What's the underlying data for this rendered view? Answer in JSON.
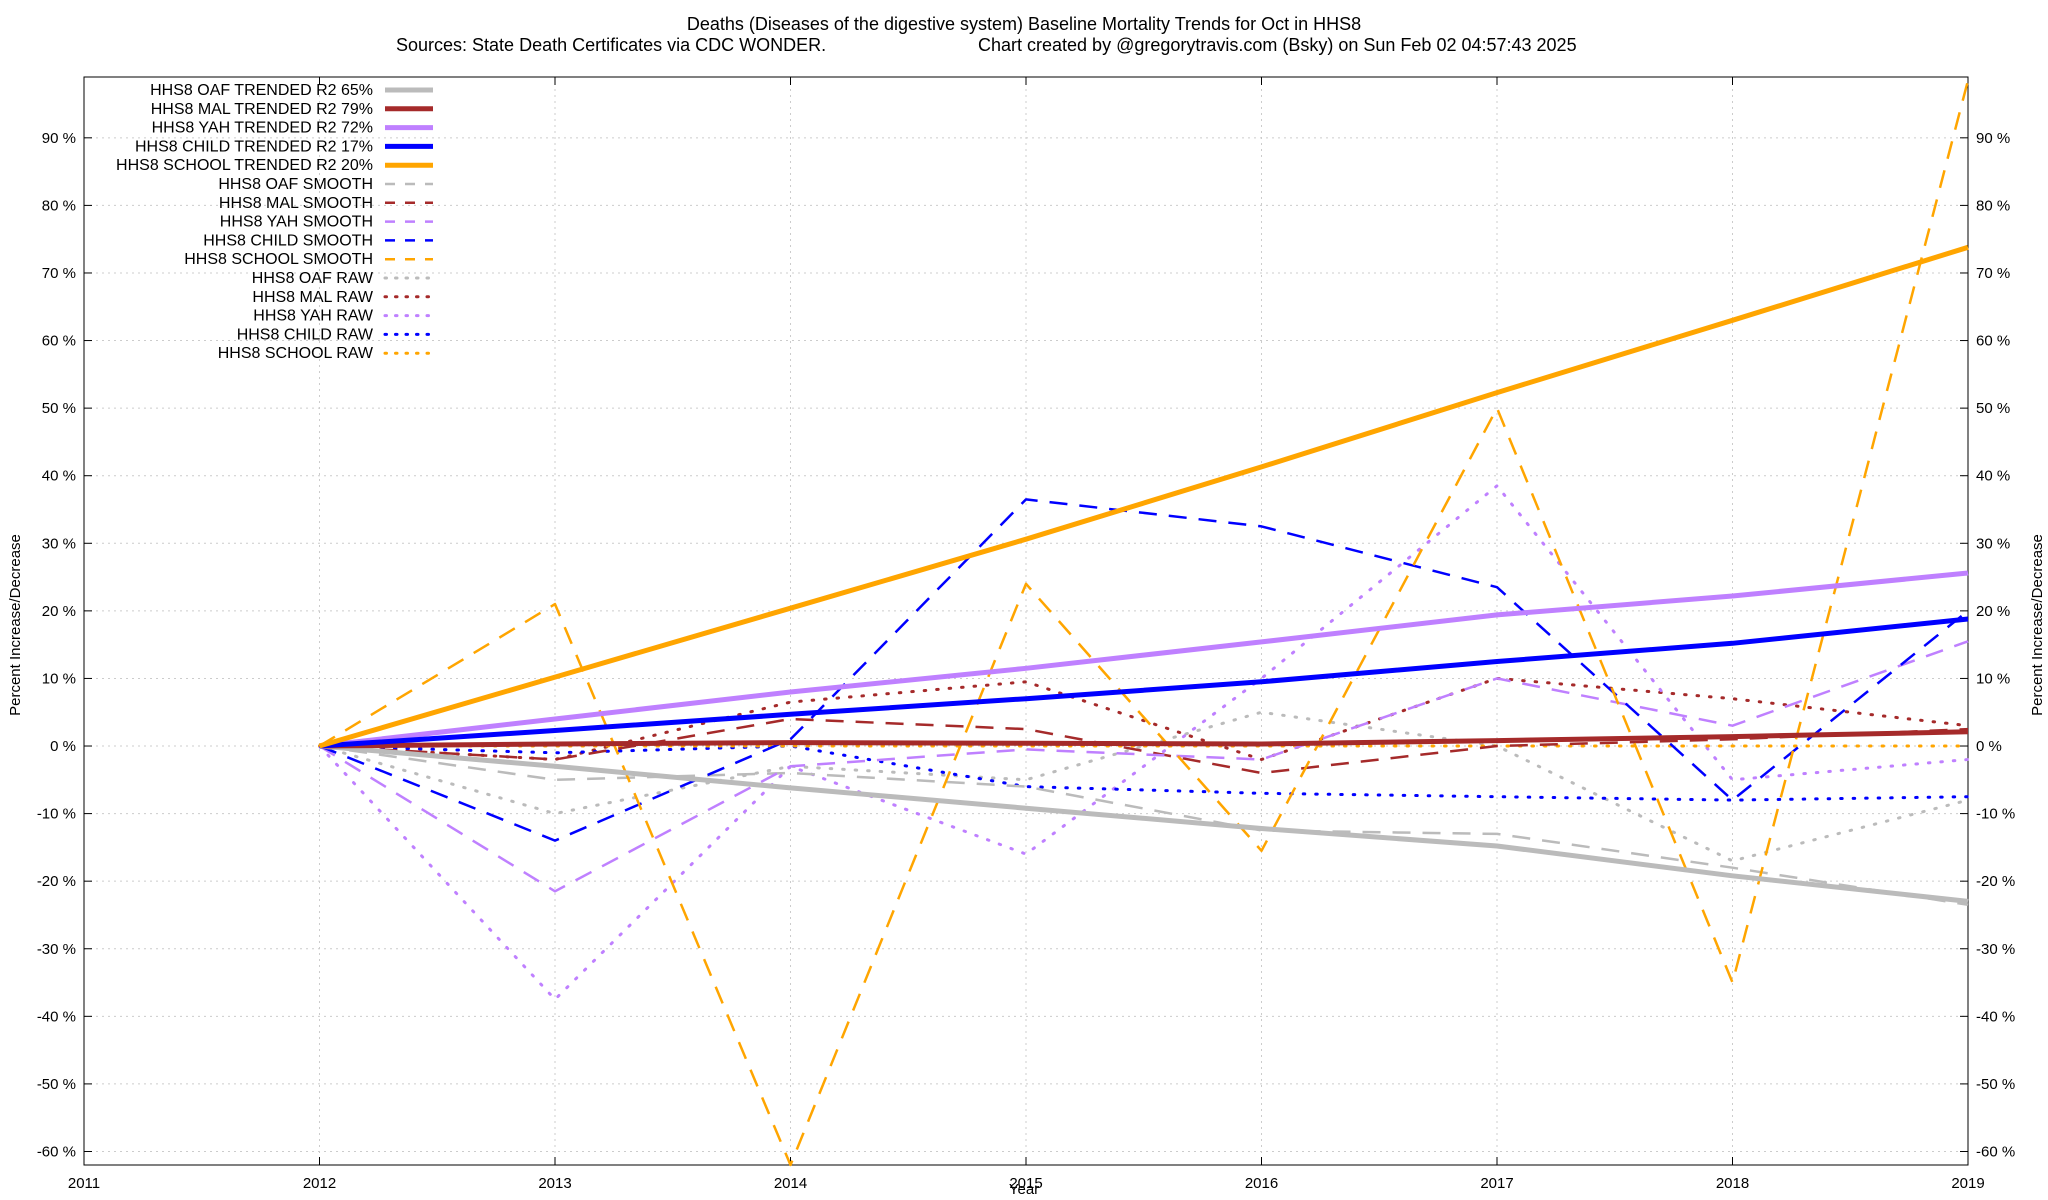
{
  "chart_data": {
    "type": "line",
    "title": "Deaths (Diseases of the digestive system)  Baseline Mortality Trends for Oct in HHS8",
    "subtitle_left": "Sources: State Death Certificates via CDC WONDER.",
    "subtitle_right": "Chart created by @gregorytravis.com (Bsky) on Sun Feb 02 04:57:43 2025",
    "xlabel": "Year",
    "ylabel": "Percent Increase/Decrease",
    "ylabel_right": "Percent Increase/Decrease",
    "xlim": [
      2011,
      2019
    ],
    "ylim": [
      -62,
      99
    ],
    "x_ticks": [
      2011,
      2012,
      2013,
      2014,
      2015,
      2016,
      2017,
      2018,
      2019
    ],
    "x_tick_labels": [
      "2011",
      "2012",
      "2013",
      "2014",
      "2015",
      "2016",
      "2017",
      "2018",
      "2019"
    ],
    "y_ticks": [
      90,
      80,
      70,
      60,
      50,
      40,
      30,
      20,
      10,
      0,
      -10,
      -20,
      -30,
      -40,
      -50,
      -60
    ],
    "y_tick_labels": [
      "90 %",
      "80 %",
      "70 %",
      "60 %",
      "50 %",
      "40 %",
      "30 %",
      "20 %",
      "10 %",
      "0 %",
      "-10 %",
      "-20 %",
      "-30 %",
      "-40 %",
      "-50 %",
      "-60 %"
    ],
    "grid": true,
    "legend_position": "top-left",
    "series": [
      {
        "name": "HHS8 OAF TRENDED R2  65%",
        "color": "#bbbbbb",
        "style": "solid",
        "x": [
          2012,
          2013,
          2014,
          2015,
          2016,
          2017,
          2018,
          2019
        ],
        "y": [
          0,
          -3,
          -6.2,
          -9.2,
          -12.2,
          -14.8,
          -19.2,
          -23
        ]
      },
      {
        "name": "HHS8 MAL TRENDED R2  79%",
        "color": "#a52a2a",
        "style": "solid",
        "x": [
          2012,
          2013,
          2014,
          2015,
          2016,
          2017,
          2018,
          2019
        ],
        "y": [
          0,
          0.3,
          0.5,
          0.4,
          0.3,
          0.8,
          1.4,
          2.1
        ]
      },
      {
        "name": "HHS8 YAH TRENDED R2  72%",
        "color": "#bf80ff",
        "style": "solid",
        "x": [
          2012,
          2013,
          2014,
          2015,
          2016,
          2017,
          2018,
          2019
        ],
        "y": [
          0,
          4,
          8,
          11.5,
          15.4,
          19.4,
          22.2,
          25.6
        ]
      },
      {
        "name": "HHS8 CHILD TRENDED R2  17%",
        "color": "#0000ff",
        "style": "solid",
        "x": [
          2012,
          2013,
          2014,
          2015,
          2016,
          2017,
          2018,
          2019
        ],
        "y": [
          0,
          2.3,
          4.7,
          7,
          9.5,
          12.5,
          15.2,
          18.8
        ]
      },
      {
        "name": "HHS8 SCHOOL TRENDED R2  20%",
        "color": "#ffa500",
        "style": "solid",
        "x": [
          2012,
          2013,
          2014,
          2015,
          2016,
          2017,
          2018,
          2019
        ],
        "y": [
          0,
          10.2,
          20.4,
          30.6,
          41.3,
          52.3,
          63,
          73.8
        ]
      },
      {
        "name": "HHS8 OAF SMOOTH",
        "color": "#bbbbbb",
        "style": "dash",
        "x": [
          2012,
          2013,
          2014,
          2015,
          2016,
          2017,
          2018,
          2019
        ],
        "y": [
          0,
          -5,
          -4,
          -6,
          -12.5,
          -13,
          -18,
          -23.5
        ]
      },
      {
        "name": "HHS8 MAL SMOOTH",
        "color": "#a52a2a",
        "style": "dash",
        "x": [
          2012,
          2013,
          2014,
          2015,
          2016,
          2017,
          2018,
          2019
        ],
        "y": [
          0,
          -2,
          4,
          2.5,
          -4,
          0,
          1,
          2.5
        ]
      },
      {
        "name": "HHS8 YAH SMOOTH",
        "color": "#bf80ff",
        "style": "dash",
        "x": [
          2012,
          2013,
          2014,
          2015,
          2016,
          2017,
          2018,
          2019
        ],
        "y": [
          0,
          -21.5,
          -3,
          -0.5,
          -2,
          10,
          3,
          15.5
        ]
      },
      {
        "name": "HHS8 CHILD SMOOTH",
        "color": "#0000ff",
        "style": "dash",
        "x": [
          2012,
          2013,
          2014,
          2015,
          2016,
          2017,
          2018,
          2019
        ],
        "y": [
          0,
          -14,
          1,
          36.5,
          32.5,
          23.5,
          -8,
          20
        ]
      },
      {
        "name": "HHS8 SCHOOL SMOOTH",
        "color": "#ffa500",
        "style": "dash",
        "x": [
          2012,
          2013,
          2014,
          2015,
          2016,
          2017,
          2018,
          2019
        ],
        "y": [
          0,
          21,
          -62,
          24,
          -15.5,
          50,
          -35,
          98.5
        ]
      },
      {
        "name": "HHS8 OAF RAW",
        "color": "#bbbbbb",
        "style": "dot",
        "x": [
          2012,
          2013,
          2014,
          2015,
          2016,
          2017,
          2018,
          2019
        ],
        "y": [
          0,
          -10,
          -3,
          -5,
          5,
          0,
          -17,
          -8
        ]
      },
      {
        "name": "HHS8 MAL RAW",
        "color": "#a52a2a",
        "style": "dot",
        "x": [
          2012,
          2013,
          2014,
          2015,
          2016,
          2017,
          2018,
          2019
        ],
        "y": [
          0,
          -2,
          6.5,
          9.5,
          -2,
          10,
          7,
          3
        ]
      },
      {
        "name": "HHS8 YAH RAW",
        "color": "#bf80ff",
        "style": "dot",
        "x": [
          2012,
          2013,
          2014,
          2015,
          2016,
          2017,
          2018,
          2019
        ],
        "y": [
          0,
          -37.5,
          -3,
          -16,
          10,
          38.5,
          -5,
          -2
        ]
      },
      {
        "name": "HHS8 CHILD RAW",
        "color": "#0000ff",
        "style": "dot",
        "x": [
          2012,
          2013,
          2014,
          2015,
          2016,
          2017,
          2018,
          2019
        ],
        "y": [
          0,
          -1,
          0,
          -6,
          -7,
          -7.5,
          -8,
          -7.5
        ]
      },
      {
        "name": "HHS8 SCHOOL RAW",
        "color": "#ffa500",
        "style": "dot",
        "x": [
          2012,
          2013,
          2014,
          2015,
          2016,
          2017,
          2018,
          2019
        ],
        "y": [
          0,
          0,
          0,
          0,
          0,
          0,
          0,
          0
        ]
      }
    ]
  }
}
